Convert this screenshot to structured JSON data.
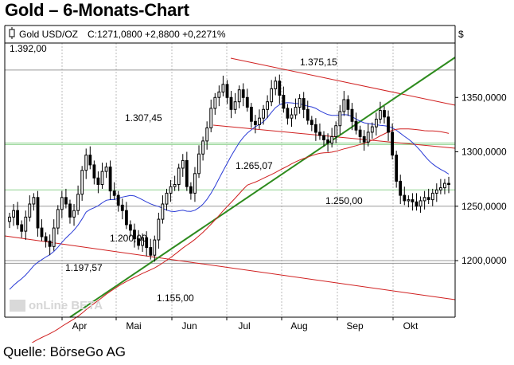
{
  "title": "Gold – 6-Monats-Chart",
  "source": "Quelle: BörseGo AG",
  "legend": {
    "symbol": "Gold USD/OZ",
    "quote": "C:1271,0800 +2,8800 +0,2271%"
  },
  "currency_label": "$",
  "watermark": "onLine BETA",
  "colors": {
    "candle": "#000000",
    "sma_short": "#2a3bd6",
    "sma_long": "#d02020",
    "trend_up": "#2e8b1e",
    "trend_down": "#d02020",
    "support": "#8fd28f",
    "grid": "#bbbbbb",
    "quote": "#d02020"
  },
  "chart_data": {
    "type": "candlestick",
    "title": "Gold – 6-Monats-Chart",
    "ylabel": "$",
    "ylim": [
      1148,
      1400
    ],
    "y_ticks": [
      {
        "value": 1350,
        "label": "1350,0000"
      },
      {
        "value": 1300,
        "label": "1300,0000"
      },
      {
        "value": 1250,
        "label": "1250,0000"
      },
      {
        "value": 1200,
        "label": "1200,0000"
      }
    ],
    "x_ticks": [
      "Apr",
      "Mai",
      "Jun",
      "Jul",
      "Aug",
      "Sep",
      "Okt"
    ],
    "price_annotations": [
      {
        "label": "1.392,00",
        "value": 1392
      },
      {
        "label": "1.375,15",
        "value": 1375.15
      },
      {
        "label": "1.307,45",
        "value": 1307.45
      },
      {
        "label": "1.265,07",
        "value": 1265.07
      },
      {
        "label": "1.250,00",
        "value": 1250
      },
      {
        "label": "1.200,00",
        "value": 1200
      },
      {
        "label": "1.197,57",
        "value": 1197.57
      },
      {
        "label": "1.155,00",
        "value": 1155
      }
    ],
    "horizontal_levels": [
      1375.15,
      1307.45,
      1265.07,
      1250,
      1200,
      1197.57
    ],
    "close_series": [
      1240,
      1246,
      1233,
      1227,
      1240,
      1252,
      1258,
      1230,
      1222,
      1218,
      1213,
      1230,
      1247,
      1258,
      1252,
      1240,
      1246,
      1261,
      1283,
      1297,
      1288,
      1276,
      1270,
      1282,
      1286,
      1264,
      1260,
      1251,
      1246,
      1233,
      1228,
      1220,
      1214,
      1221,
      1212,
      1205,
      1219,
      1238,
      1252,
      1262,
      1268,
      1270,
      1285,
      1292,
      1268,
      1262,
      1280,
      1298,
      1310,
      1322,
      1340,
      1350,
      1355,
      1362,
      1350,
      1339,
      1346,
      1357,
      1350,
      1341,
      1328,
      1325,
      1331,
      1339,
      1346,
      1358,
      1365,
      1352,
      1340,
      1331,
      1334,
      1341,
      1349,
      1339,
      1329,
      1325,
      1318,
      1315,
      1311,
      1308,
      1314,
      1324,
      1337,
      1348,
      1339,
      1328,
      1320,
      1314,
      1309,
      1318,
      1323,
      1330,
      1338,
      1332,
      1318,
      1297,
      1273,
      1260,
      1255,
      1256,
      1254,
      1250,
      1255,
      1258,
      1256,
      1262,
      1265,
      1267,
      1271,
      1270
    ]
  }
}
